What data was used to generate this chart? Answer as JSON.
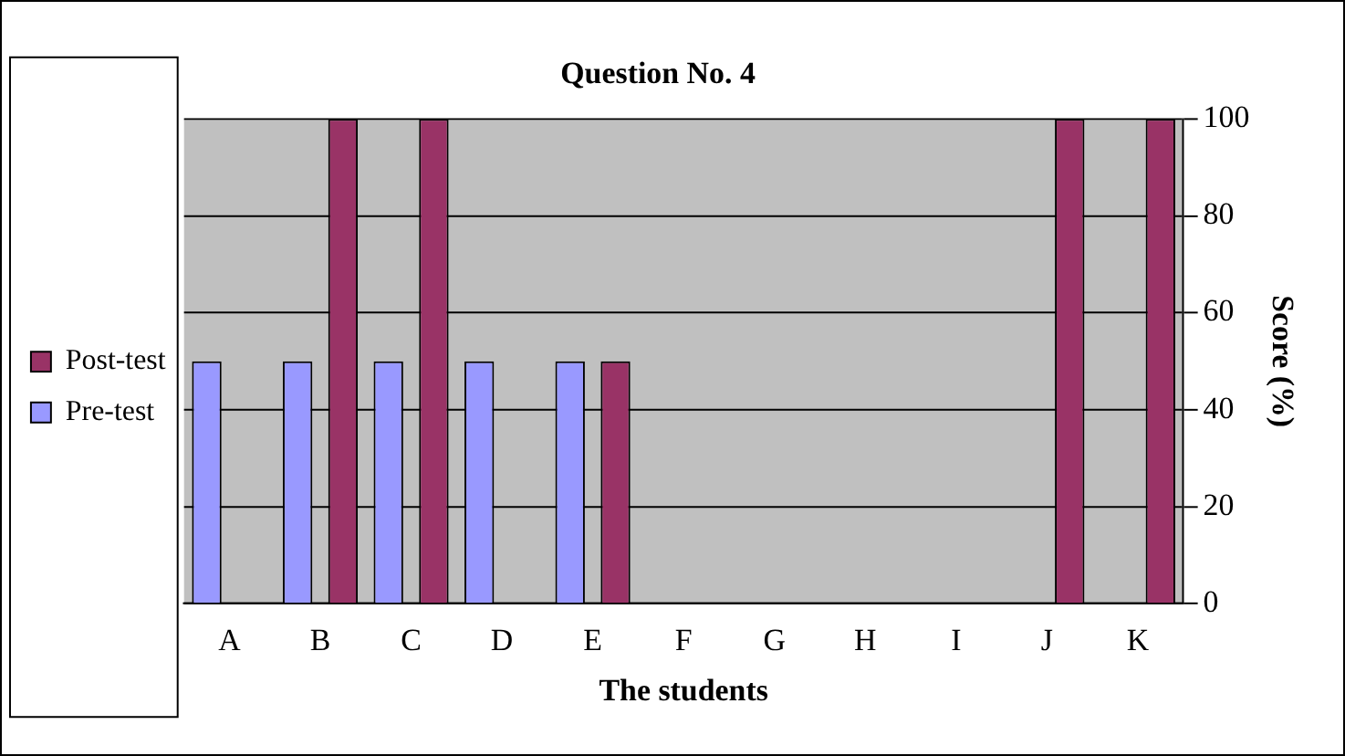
{
  "chart_data": {
    "type": "bar",
    "title": "Question No. 4",
    "xlabel": "The students",
    "ylabel": "Score (%)",
    "categories": [
      "A",
      "B",
      "C",
      "D",
      "E",
      "F",
      "G",
      "H",
      "I",
      "J",
      "K"
    ],
    "series": [
      {
        "name": "Pre-test",
        "color": "#9999ff",
        "values": [
          50,
          50,
          50,
          50,
          50,
          0,
          0,
          0,
          0,
          0,
          0
        ]
      },
      {
        "name": "Post-test",
        "color": "#993366",
        "values": [
          0,
          100,
          100,
          0,
          50,
          0,
          0,
          0,
          0,
          100,
          100
        ]
      }
    ],
    "ylim": [
      0,
      100
    ],
    "yticks": [
      0,
      20,
      40,
      60,
      80,
      100
    ],
    "grid": "y",
    "legend": "left"
  }
}
